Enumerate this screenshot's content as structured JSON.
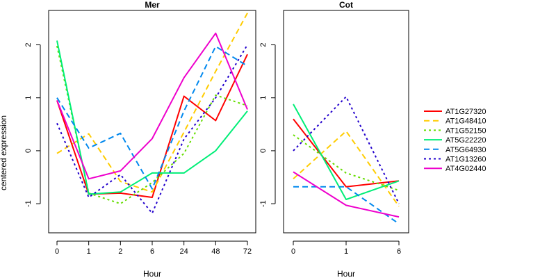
{
  "chart_data": {
    "type": "line",
    "ylabel": "centered expression",
    "colors": {
      "AT1G27320": "#ff0000",
      "AT1G48410": "#ffcc00",
      "AT1G52150": "#66dd00",
      "AT5G22220": "#00ee77",
      "AT5G64930": "#0088ee",
      "AT1G13260": "#2200cc",
      "AT4G02440": "#ee00cc"
    },
    "legend": {
      "position": "right",
      "entries": [
        "AT1G27320",
        "AT1G48410",
        "AT1G52150",
        "AT5G22220",
        "AT5G64930",
        "AT1G13260",
        "AT4G02440"
      ]
    },
    "panels": [
      {
        "title": "Mer",
        "xlabel": "Hour",
        "categories": [
          "0",
          "1",
          "2",
          "6",
          "24",
          "48",
          "72"
        ],
        "ylim": [
          -1.55,
          2.65
        ],
        "yticks": [
          -1,
          0,
          1,
          2
        ],
        "series": [
          {
            "name": "AT1G27320",
            "values": [
              0.95,
              -0.82,
              -0.8,
              -0.88,
              1.03,
              0.57,
              1.82
            ]
          },
          {
            "name": "AT1G48410",
            "values": [
              -0.05,
              0.32,
              -0.58,
              -0.78,
              0.35,
              1.5,
              2.6
            ]
          },
          {
            "name": "AT1G52150",
            "values": [
              1.98,
              -0.8,
              -1.0,
              -0.6,
              -0.05,
              1.05,
              0.85
            ]
          },
          {
            "name": "AT5G22220",
            "values": [
              2.08,
              -0.82,
              -0.78,
              -0.42,
              -0.42,
              0.0,
              0.75
            ]
          },
          {
            "name": "AT5G64930",
            "values": [
              1.0,
              0.05,
              0.33,
              -0.72,
              0.75,
              1.97,
              1.6
            ]
          },
          {
            "name": "AT1G13260",
            "values": [
              0.52,
              -0.88,
              -0.45,
              -1.18,
              0.22,
              1.0,
              2.0
            ]
          },
          {
            "name": "AT4G02440",
            "values": [
              0.95,
              -0.53,
              -0.38,
              0.23,
              1.38,
              2.22,
              0.78
            ]
          }
        ]
      },
      {
        "title": "Cot",
        "xlabel": "Hour",
        "categories": [
          "0",
          "1",
          "6"
        ],
        "ylim": [
          -1.55,
          2.65
        ],
        "yticks": [
          -1,
          0,
          1,
          2
        ],
        "series": [
          {
            "name": "AT1G27320",
            "values": [
              0.6,
              -0.68,
              -0.57
            ]
          },
          {
            "name": "AT1G48410",
            "values": [
              -0.53,
              0.37,
              -1.05
            ]
          },
          {
            "name": "AT1G52150",
            "values": [
              0.3,
              -0.42,
              -0.75
            ]
          },
          {
            "name": "AT5G22220",
            "values": [
              0.88,
              -0.92,
              -0.57
            ]
          },
          {
            "name": "AT5G64930",
            "values": [
              -0.68,
              -0.68,
              -1.38
            ]
          },
          {
            "name": "AT1G13260",
            "values": [
              0.0,
              1.02,
              -1.0
            ]
          },
          {
            "name": "AT4G02440",
            "values": [
              -0.4,
              -1.03,
              -1.25
            ]
          }
        ]
      }
    ]
  }
}
